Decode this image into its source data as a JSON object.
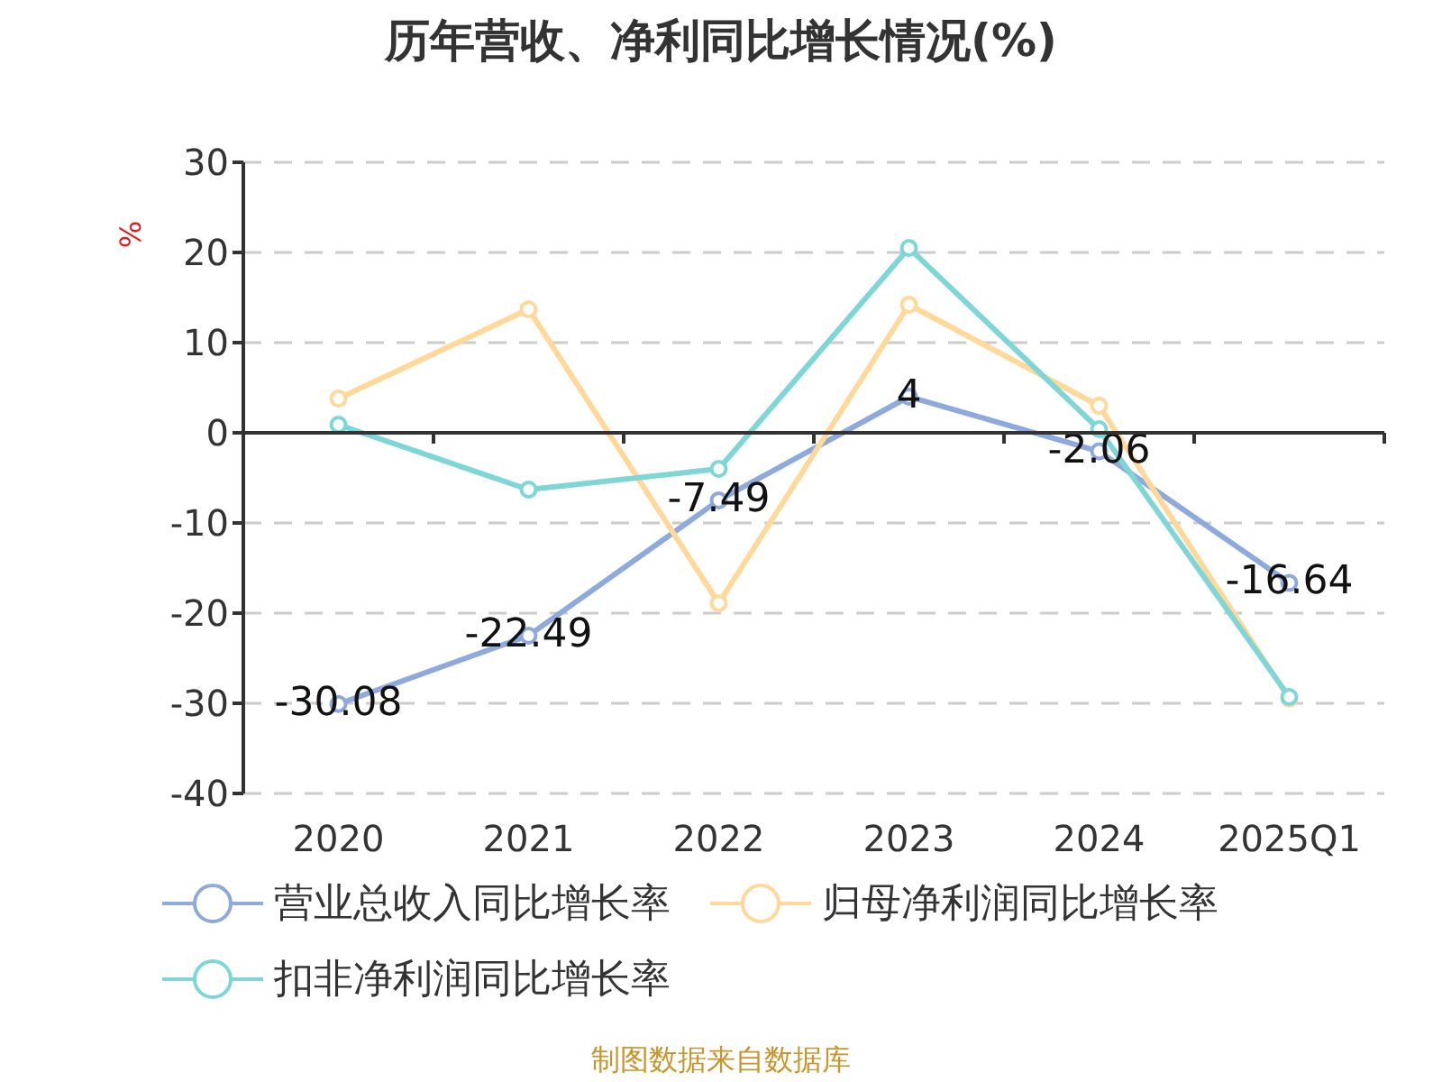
{
  "chart_data": {
    "type": "line",
    "title": "历年营收、净利同比增长情况(%)",
    "ylabel": "%",
    "categories": [
      "2020",
      "2021",
      "2022",
      "2023",
      "2024",
      "2025Q1"
    ],
    "series": [
      {
        "name": "营业总收入同比增长率",
        "color": "#8eaadc",
        "values": [
          -30.08,
          -22.49,
          -7.49,
          4,
          -2.06,
          -16.64
        ],
        "value_labels": [
          "-30.08",
          "-22.49",
          "-7.49",
          "4",
          "-2.06",
          "-16.64"
        ]
      },
      {
        "name": "归母净利润同比增长率",
        "color": "#ffd89a",
        "values": [
          3.8,
          13.7,
          -18.9,
          14.2,
          3.0,
          -29.5
        ]
      },
      {
        "name": "扣非净利润同比增长率",
        "color": "#7fd6d6",
        "values": [
          0.9,
          -6.3,
          -4.0,
          20.5,
          0.4,
          -29.3
        ]
      }
    ],
    "ylim": [
      -40,
      30
    ],
    "yticks": [
      -40,
      -30,
      -20,
      -10,
      0,
      10,
      20,
      30
    ],
    "grid": "y",
    "legend": "bottom",
    "marker": "circle",
    "line_style": "solid",
    "annotations": [
      "制图数据来自数据库"
    ]
  }
}
